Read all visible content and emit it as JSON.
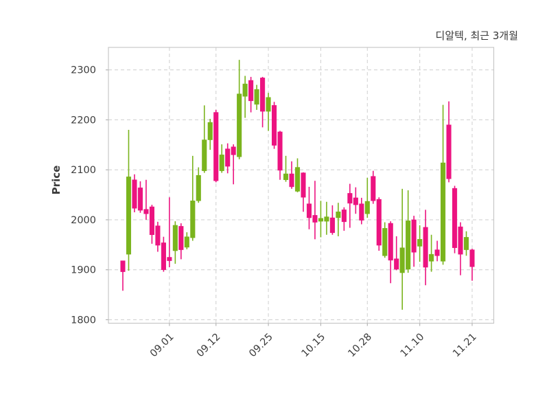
{
  "title": "디알텍, 최근 3개월",
  "chart_data": {
    "type": "candlestick",
    "title": "디알텍, 최근 3개월",
    "ylabel": "Price",
    "grid": true,
    "grid_style": "dashed",
    "legend": "none",
    "ylim": [
      1793,
      2345
    ],
    "y_ticks": [
      1800,
      1900,
      2000,
      2100,
      2200,
      2300
    ],
    "x_ticks": [
      {
        "label": "09.01",
        "index": 8
      },
      {
        "label": "09.12",
        "index": 16
      },
      {
        "label": "09.25",
        "index": 25
      },
      {
        "label": "10.15",
        "index": 34
      },
      {
        "label": "10.28",
        "index": 42
      },
      {
        "label": "11.10",
        "index": 51
      },
      {
        "label": "11.21",
        "index": 60
      }
    ],
    "colors": {
      "up": "#7ab41d",
      "down": "#ec1380",
      "grid": "#d3d3d3",
      "spine": "#c7c7c7",
      "tick": "#b5b5b5",
      "text": "#3c3c3c",
      "title_text": "#383838",
      "background": "#ffffff"
    },
    "candle_columns": [
      "open",
      "high",
      "low",
      "close"
    ],
    "candles": [
      [
        1918,
        1918,
        1858,
        1896
      ],
      [
        1931,
        2180,
        1898,
        2086
      ],
      [
        2080,
        2091,
        2015,
        2023
      ],
      [
        2064,
        2077,
        2014,
        2019
      ],
      [
        2021,
        2080,
        2000,
        2012
      ],
      [
        2026,
        2030,
        1952,
        1970
      ],
      [
        1988,
        1996,
        1936,
        1949
      ],
      [
        1954,
        1966,
        1896,
        1900
      ],
      [
        1925,
        2045,
        1905,
        1918
      ],
      [
        1938,
        1997,
        1912,
        1989
      ],
      [
        1987,
        1993,
        1921,
        1940
      ],
      [
        1945,
        1975,
        1941,
        1966
      ],
      [
        1964,
        2128,
        1958,
        2038
      ],
      [
        2038,
        2105,
        2034,
        2089
      ],
      [
        2098,
        2229,
        2094,
        2160
      ],
      [
        2160,
        2202,
        2140,
        2195
      ],
      [
        2215,
        2220,
        2075,
        2078
      ],
      [
        2098,
        2151,
        2094,
        2130
      ],
      [
        2142,
        2153,
        2093,
        2107
      ],
      [
        2146,
        2151,
        2071,
        2130
      ],
      [
        2126,
        2320,
        2121,
        2252
      ],
      [
        2247,
        2288,
        2204,
        2272
      ],
      [
        2279,
        2286,
        2215,
        2238
      ],
      [
        2231,
        2270,
        2220,
        2261
      ],
      [
        2284,
        2286,
        2185,
        2217
      ],
      [
        2217,
        2254,
        2178,
        2245
      ],
      [
        2229,
        2236,
        2142,
        2149
      ],
      [
        2176,
        2178,
        2080,
        2099
      ],
      [
        2080,
        2128,
        2076,
        2092
      ],
      [
        2092,
        2117,
        2062,
        2066
      ],
      [
        2057,
        2123,
        2055,
        2105
      ],
      [
        2094,
        2095,
        2016,
        2045
      ],
      [
        2032,
        2066,
        1981,
        2004
      ],
      [
        2009,
        2078,
        1961,
        1995
      ],
      [
        1997,
        2038,
        1965,
        2003
      ],
      [
        1997,
        2036,
        1970,
        2006
      ],
      [
        2004,
        2029,
        1970,
        1974
      ],
      [
        2004,
        2034,
        1967,
        2016
      ],
      [
        2020,
        2025,
        1978,
        1996
      ],
      [
        2053,
        2072,
        1984,
        2033
      ],
      [
        2044,
        2065,
        2012,
        2030
      ],
      [
        2032,
        2044,
        1991,
        1999
      ],
      [
        2012,
        2084,
        2004,
        2037
      ],
      [
        2087,
        2098,
        2032,
        2038
      ],
      [
        2041,
        2045,
        1938,
        1949
      ],
      [
        1928,
        1995,
        1924,
        1983
      ],
      [
        1993,
        1997,
        1873,
        1919
      ],
      [
        1922,
        1967,
        1899,
        1901
      ],
      [
        1894,
        2062,
        1820,
        1944
      ],
      [
        1901,
        2059,
        1894,
        1998
      ],
      [
        2000,
        2008,
        1906,
        1935
      ],
      [
        1947,
        1989,
        1916,
        1961
      ],
      [
        1985,
        2020,
        1869,
        1905
      ],
      [
        1917,
        1970,
        1896,
        1931
      ],
      [
        1940,
        1958,
        1917,
        1928
      ],
      [
        1917,
        2230,
        1910,
        2114
      ],
      [
        2190,
        2237,
        2075,
        2082
      ],
      [
        2063,
        2068,
        1933,
        1944
      ],
      [
        1986,
        1995,
        1889,
        1931
      ],
      [
        1940,
        1977,
        1928,
        1965
      ],
      [
        1940,
        1942,
        1878,
        1906
      ]
    ]
  }
}
